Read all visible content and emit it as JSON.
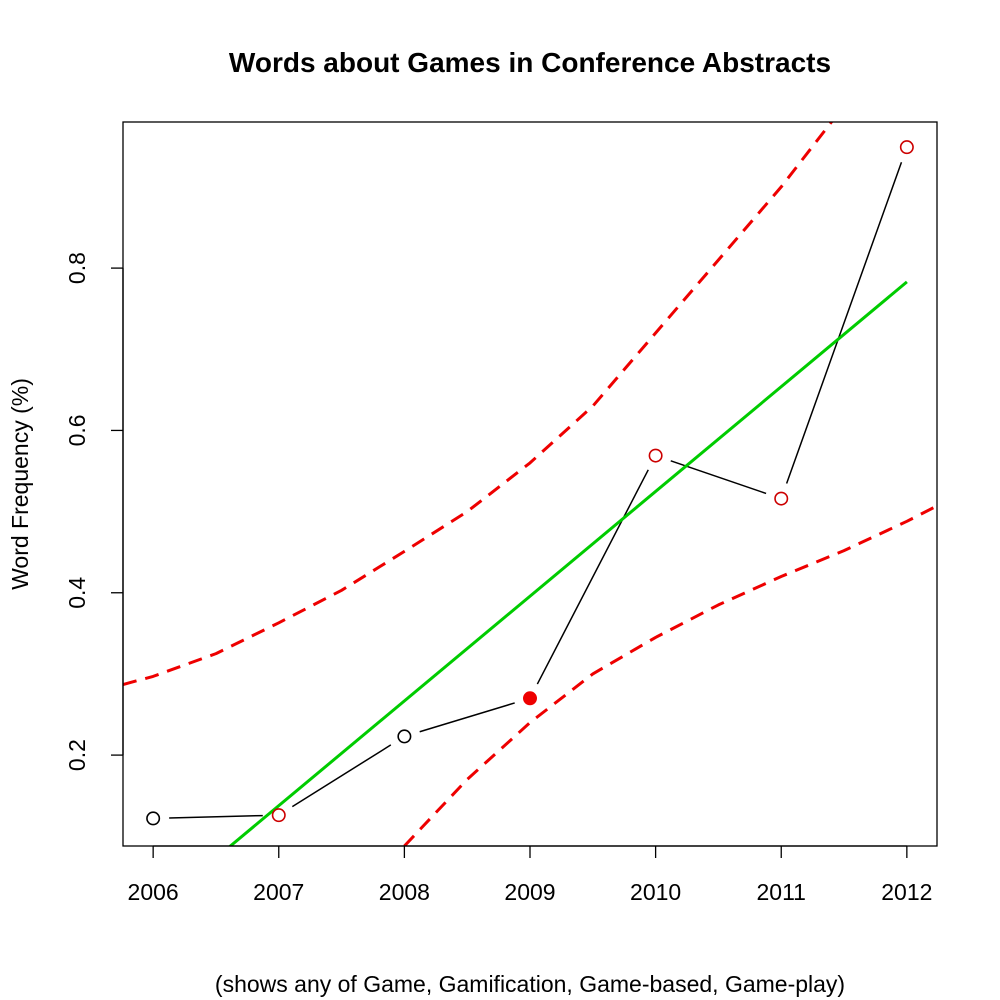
{
  "chart_data": {
    "type": "line",
    "title": "Words about Games in Conference Abstracts",
    "xlabel": "(shows any of Game, Gamification, Game-based, Game-play)",
    "ylabel": "Word Frequency (%)",
    "x_ticks": [
      2006,
      2007,
      2008,
      2009,
      2010,
      2011,
      2012
    ],
    "y_ticks": [
      0.2,
      0.4,
      0.6,
      0.8
    ],
    "y_tick_labels": [
      "0.2",
      "0.4",
      "0.6",
      "0.8"
    ],
    "xlim": [
      2005.76,
      2012.24
    ],
    "ylim": [
      0.088,
      0.98
    ],
    "grid": false,
    "series": [
      {
        "kind": "observed",
        "style": "points-connected",
        "color": "#000000",
        "x": [
          2006,
          2007,
          2008,
          2009,
          2010,
          2011,
          2012
        ],
        "y": [
          0.122,
          0.126,
          0.223,
          0.27,
          0.569,
          0.516,
          0.949
        ],
        "point_colors": [
          "#000000",
          "#cc0000",
          "#000000",
          "#ee0000",
          "#cc0000",
          "#cc0000",
          "#cc0000"
        ],
        "point_filled": [
          false,
          false,
          false,
          true,
          false,
          false,
          false
        ]
      },
      {
        "kind": "fit",
        "style": "solid",
        "color": "#00cc00",
        "x": [
          2006.6,
          2012
        ],
        "y": [
          0.086,
          0.783
        ]
      },
      {
        "kind": "upper-bound",
        "style": "dashed",
        "color": "#ee0000",
        "x": [
          2005.76,
          2006,
          2006.5,
          2007,
          2007.5,
          2008,
          2008.5,
          2009,
          2009.5,
          2010,
          2010.5,
          2011,
          2011.5
        ],
        "y": [
          0.287,
          0.297,
          0.325,
          0.363,
          0.403,
          0.451,
          0.5,
          0.56,
          0.63,
          0.72,
          0.81,
          0.9,
          1.0
        ]
      },
      {
        "kind": "lower-bound",
        "style": "dashed",
        "color": "#ee0000",
        "x": [
          2008,
          2008.5,
          2009,
          2009.5,
          2010,
          2010.5,
          2011,
          2011.5,
          2012,
          2012.24
        ],
        "y": [
          0.088,
          0.17,
          0.24,
          0.3,
          0.345,
          0.385,
          0.42,
          0.452,
          0.488,
          0.507
        ]
      }
    ]
  }
}
